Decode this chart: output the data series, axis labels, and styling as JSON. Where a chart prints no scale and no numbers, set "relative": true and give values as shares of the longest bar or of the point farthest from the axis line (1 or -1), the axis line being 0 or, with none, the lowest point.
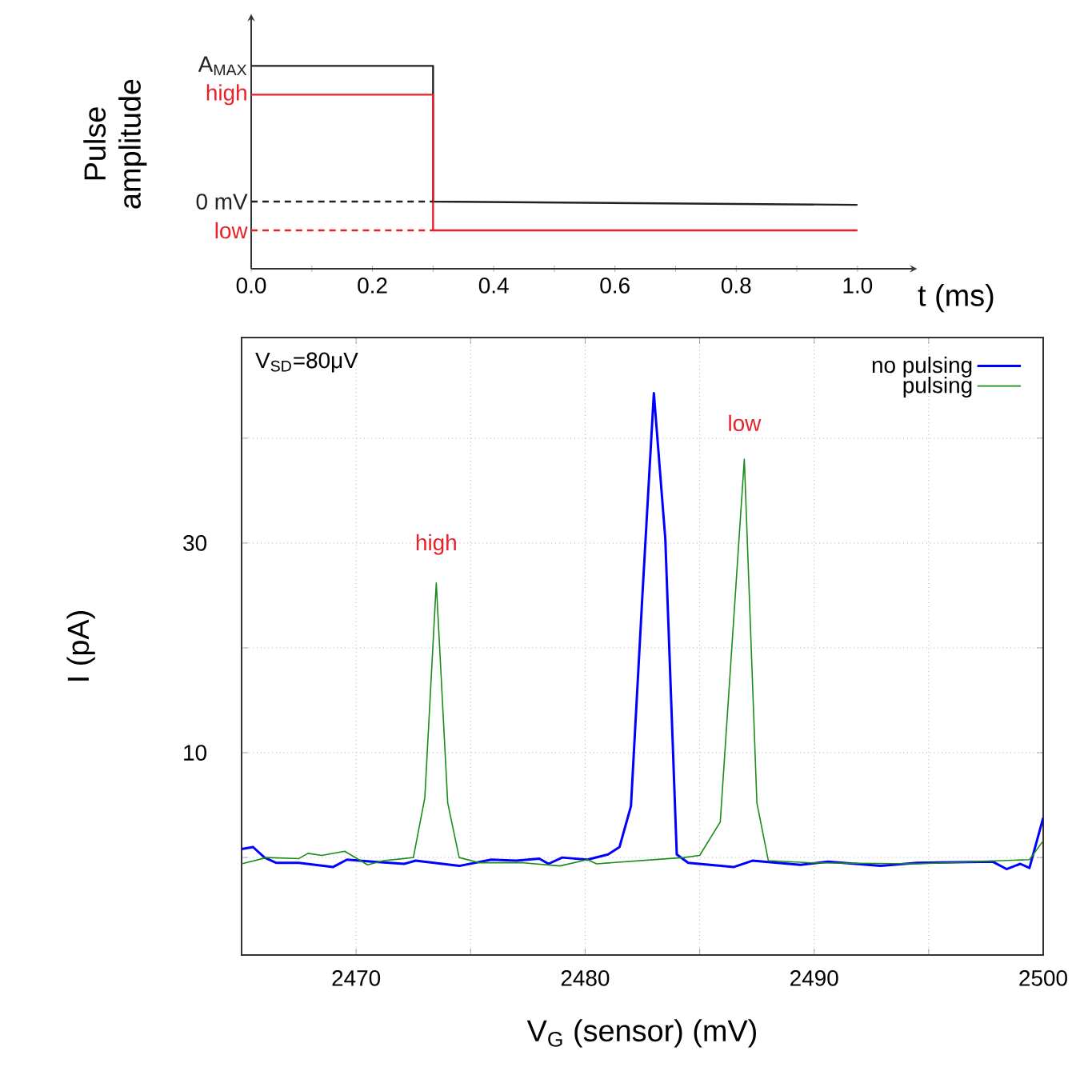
{
  "chart_data": [
    {
      "type": "line",
      "relative": true,
      "xlabel": "t (ms)",
      "ylabel": "Pulse amplitude",
      "xlim": [
        0,
        1.09
      ],
      "xticks": [
        {
          "value": 0,
          "label": "0.0"
        },
        {
          "value": 0.1,
          "label": null
        },
        0.2,
        {
          "value": 0.3,
          "label": null
        },
        0.4,
        {
          "value": 0.5,
          "label": null
        },
        0.6,
        {
          "value": 0.7,
          "label": null
        },
        0.8,
        {
          "value": 0.9,
          "label": null
        },
        {
          "value": 1,
          "label": "1.0"
        }
      ],
      "series": [
        {
          "color": "#222222",
          "x": [
            0,
            0.3,
            0.3,
            1.0
          ],
          "values": [
            1,
            1,
            0.331,
            0.315
          ]
        },
        {
          "color": "#e8202a",
          "x": [
            0,
            0.3,
            0.3,
            1.0
          ],
          "values": [
            0.858,
            0.858,
            0.189,
            0.189
          ]
        },
        {
          "color": "#222222",
          "line_style": "dashed",
          "x": [
            0,
            0.3
          ],
          "values": [
            0.331,
            0.331
          ]
        },
        {
          "color": "#e8202a",
          "line_style": "dashed",
          "x": [
            0,
            0.3
          ],
          "values": [
            0.189,
            0.189
          ]
        }
      ],
      "annotations": [
        {
          "text": "A$_{MAX}$",
          "x": 0,
          "y": 1
        },
        {
          "text": "high",
          "x": 0,
          "y": 0.858
        },
        {
          "text": "0 mV",
          "x": 0,
          "y": 0.331
        },
        {
          "text": "low",
          "x": 0,
          "y": 0.189
        }
      ]
    },
    {
      "type": "line",
      "xlabel": "V$_{G}$ (sensor) (mV)",
      "ylabel": "I (pA)",
      "xlim": [
        2465,
        2500
      ],
      "ylim": [
        -9.3,
        49.6
      ],
      "xticks": [
        2470,
        {
          "value": 2475,
          "label": null
        },
        2480,
        {
          "value": 2485,
          "label": null
        },
        2490,
        {
          "value": 2495,
          "label": null
        },
        2500
      ],
      "yticks": [
        {
          "value": 0,
          "label": null
        },
        10,
        {
          "value": 20,
          "label": null
        },
        30,
        {
          "value": 40,
          "label": null
        }
      ],
      "grid": true,
      "legend": "top right",
      "series": [
        {
          "name": "no pulsing",
          "color": "#0000ff",
          "x": [
            2465,
            2465.5,
            2466,
            2466.5,
            2467.5,
            2469,
            2469.6,
            2470.7,
            2472.1,
            2472.6,
            2474.5,
            2475.9,
            2477,
            2478,
            2478.4,
            2479,
            2480.1,
            2481,
            2481.5,
            2482,
            2482.5,
            2483,
            2483.5,
            2484,
            2484.5,
            2486.5,
            2487.3,
            2489.4,
            2490.6,
            2492.9,
            2494.5,
            2497.8,
            2498.4,
            2499,
            2499.4,
            2500
          ],
          "values": [
            0.8,
            1.0,
            0,
            -0.5,
            -0.5,
            -0.9,
            -0.2,
            -0.4,
            -0.6,
            -0.3,
            -0.8,
            -0.2,
            -0.3,
            -0.1,
            -0.6,
            0,
            -0.2,
            0.3,
            1.0,
            4.9,
            25,
            44.3,
            30.4,
            0.3,
            -0.5,
            -0.9,
            -0.3,
            -0.7,
            -0.4,
            -0.8,
            -0.5,
            -0.4,
            -1.1,
            -0.6,
            -1.0,
            3.8
          ]
        },
        {
          "name": "pulsing",
          "color": "#1a8c1a",
          "x": [
            2465,
            2466.1,
            2467.5,
            2467.9,
            2468.5,
            2469.5,
            2470.5,
            2471.2,
            2472.5,
            2473,
            2473.5,
            2474,
            2474.5,
            2475.4,
            2477.3,
            2478.9,
            2480.1,
            2480.5,
            2484.3,
            2485,
            2485.9,
            2486.95,
            2487.5,
            2488,
            2489.9,
            2494.5,
            2499.4,
            2500
          ],
          "values": [
            -0.6,
            0,
            -0.1,
            0.4,
            0.2,
            0.6,
            -0.7,
            -0.3,
            0,
            5.7,
            26.2,
            5.2,
            0,
            -0.5,
            -0.5,
            -0.8,
            -0.2,
            -0.6,
            0,
            0.2,
            3.4,
            38.0,
            5.2,
            -0.3,
            -0.5,
            -0.6,
            -0.2,
            1.6
          ]
        }
      ],
      "annotations": [
        "V$_{SD}$=80μV",
        {
          "text": "high",
          "x": 2473.5,
          "y": 26.2
        },
        {
          "text": "low",
          "x": 2486.95,
          "y": 38.0
        }
      ]
    }
  ]
}
